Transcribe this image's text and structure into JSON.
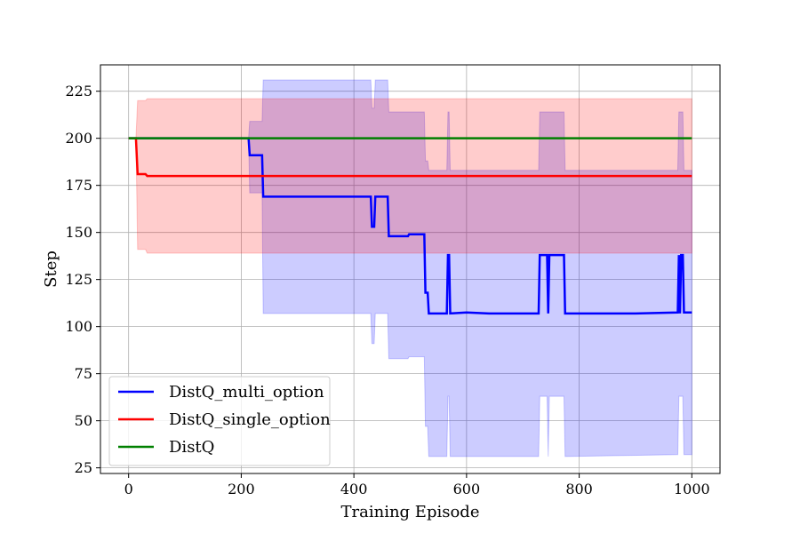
{
  "chart_data": {
    "type": "line",
    "title": "",
    "xlabel": "Training Episode",
    "ylabel": "Step",
    "xlim": [
      -50,
      1050
    ],
    "ylim": [
      22,
      239
    ],
    "xticks": [
      0,
      200,
      400,
      600,
      800,
      1000
    ],
    "yticks": [
      25,
      50,
      75,
      100,
      125,
      150,
      175,
      200,
      225
    ],
    "grid": true,
    "legend_position": "lower-left",
    "series": [
      {
        "name": "DistQ_multi_option",
        "color": "#0000ff",
        "points": [
          [
            0,
            200
          ],
          [
            213,
            200
          ],
          [
            215,
            191
          ],
          [
            237,
            191
          ],
          [
            239,
            169
          ],
          [
            430,
            169
          ],
          [
            432,
            153
          ],
          [
            436,
            153
          ],
          [
            438,
            169
          ],
          [
            460,
            169
          ],
          [
            462,
            148
          ],
          [
            496,
            148
          ],
          [
            498,
            149
          ],
          [
            525,
            149
          ],
          [
            527,
            118
          ],
          [
            531,
            118
          ],
          [
            533,
            107
          ],
          [
            565,
            107
          ],
          [
            567,
            138
          ],
          [
            569,
            138
          ],
          [
            571,
            107
          ],
          [
            600,
            107.5
          ],
          [
            640,
            107
          ],
          [
            700,
            107
          ],
          [
            728,
            107
          ],
          [
            730,
            138
          ],
          [
            743,
            138
          ],
          [
            745,
            107
          ],
          [
            747,
            138
          ],
          [
            773,
            138
          ],
          [
            775,
            107
          ],
          [
            900,
            107
          ],
          [
            975,
            107.5
          ],
          [
            977,
            138
          ],
          [
            979,
            107
          ],
          [
            981,
            138
          ],
          [
            984,
            138
          ],
          [
            986,
            107.5
          ],
          [
            1000,
            107.5
          ]
        ],
        "band_upper": [
          [
            0,
            200
          ],
          [
            213,
            200
          ],
          [
            215,
            209
          ],
          [
            237,
            209
          ],
          [
            239,
            231
          ],
          [
            430,
            231
          ],
          [
            432,
            216
          ],
          [
            436,
            216
          ],
          [
            438,
            231
          ],
          [
            460,
            231
          ],
          [
            462,
            214
          ],
          [
            525,
            214
          ],
          [
            527,
            188
          ],
          [
            531,
            188
          ],
          [
            533,
            183
          ],
          [
            565,
            183
          ],
          [
            567,
            214
          ],
          [
            569,
            214
          ],
          [
            571,
            183
          ],
          [
            728,
            183
          ],
          [
            730,
            214
          ],
          [
            773,
            214
          ],
          [
            775,
            183
          ],
          [
            975,
            183
          ],
          [
            977,
            214
          ],
          [
            984,
            214
          ],
          [
            986,
            183
          ],
          [
            1000,
            183
          ]
        ],
        "band_lower": [
          [
            0,
            200
          ],
          [
            213,
            200
          ],
          [
            215,
            171
          ],
          [
            237,
            171
          ],
          [
            239,
            107
          ],
          [
            430,
            107
          ],
          [
            432,
            91
          ],
          [
            436,
            91
          ],
          [
            438,
            107
          ],
          [
            460,
            107
          ],
          [
            462,
            83
          ],
          [
            496,
            83
          ],
          [
            498,
            84
          ],
          [
            525,
            84
          ],
          [
            527,
            47
          ],
          [
            531,
            47
          ],
          [
            533,
            31
          ],
          [
            565,
            31
          ],
          [
            567,
            63
          ],
          [
            569,
            63
          ],
          [
            571,
            31
          ],
          [
            728,
            31
          ],
          [
            730,
            63
          ],
          [
            743,
            63
          ],
          [
            745,
            31
          ],
          [
            747,
            63
          ],
          [
            773,
            63
          ],
          [
            775,
            31
          ],
          [
            975,
            32
          ],
          [
            977,
            63
          ],
          [
            984,
            63
          ],
          [
            986,
            32
          ],
          [
            1000,
            32
          ]
        ]
      },
      {
        "name": "DistQ_single_option",
        "color": "#ff0000",
        "points": [
          [
            0,
            200
          ],
          [
            13,
            200
          ],
          [
            16,
            181
          ],
          [
            30,
            181
          ],
          [
            33,
            180
          ],
          [
            1000,
            180
          ]
        ],
        "band_upper": [
          [
            0,
            200
          ],
          [
            13,
            200
          ],
          [
            16,
            220
          ],
          [
            30,
            220
          ],
          [
            33,
            221
          ],
          [
            1000,
            221
          ]
        ],
        "band_lower": [
          [
            0,
            200
          ],
          [
            13,
            200
          ],
          [
            16,
            141
          ],
          [
            30,
            141
          ],
          [
            33,
            139
          ],
          [
            1000,
            139
          ]
        ]
      },
      {
        "name": "DistQ",
        "color": "#008000",
        "points": [
          [
            0,
            200
          ],
          [
            1000,
            200
          ]
        ]
      }
    ]
  }
}
